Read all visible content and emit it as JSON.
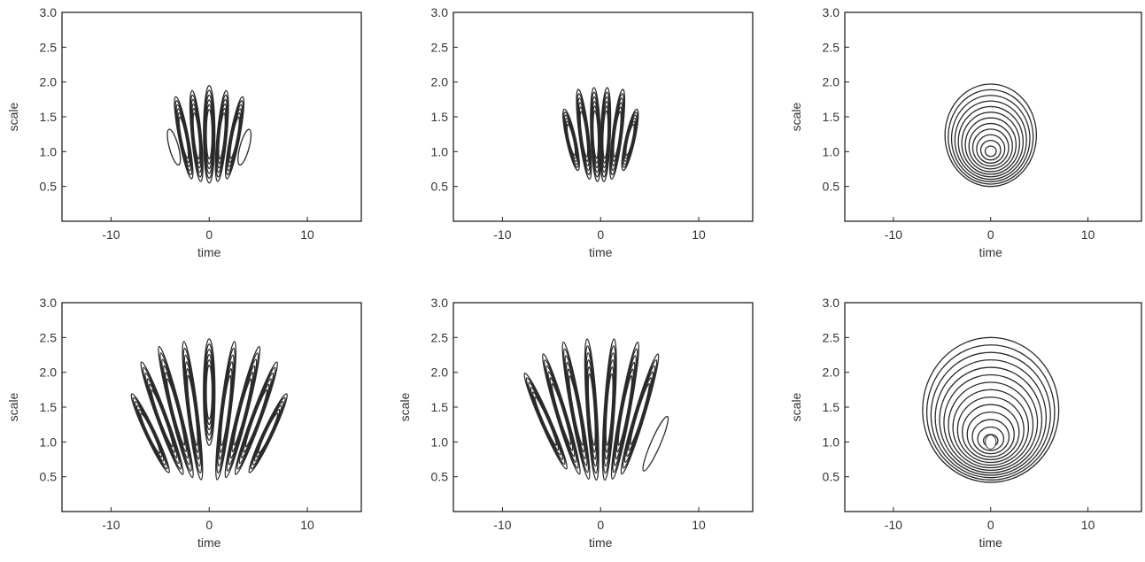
{
  "chart_data": [
    {
      "type": "contour",
      "panel": "top-left",
      "xlabel": "time",
      "ylabel": "scale",
      "xlim": [
        -15,
        15.5
      ],
      "ylim": [
        0,
        3
      ],
      "xticks": [
        "-10",
        "0",
        "10"
      ],
      "yticks": [
        "0.5",
        "1.0",
        "1.5",
        "2.0",
        "2.5",
        "3.0"
      ],
      "shape": "fan",
      "centers": [
        -3.6,
        -2.6,
        -1.3,
        0,
        1.3,
        2.6,
        3.6
      ],
      "tops": [
        1.33,
        1.8,
        1.88,
        1.95,
        1.88,
        1.8,
        1.33
      ],
      "bottoms": [
        0.8,
        0.6,
        0.57,
        0.55,
        0.57,
        0.6,
        0.8
      ],
      "dense": [
        false,
        true,
        true,
        true,
        true,
        true,
        false
      ]
    },
    {
      "type": "contour",
      "panel": "top-middle",
      "xlabel": "time",
      "ylabel": "",
      "xlim": [
        -15,
        15.5
      ],
      "ylim": [
        0,
        3
      ],
      "xticks": [
        "-10",
        "0",
        "10"
      ],
      "yticks": [
        "0.5",
        "1.0",
        "1.5",
        "2.0",
        "2.5",
        "3.0"
      ],
      "shape": "fan",
      "centers": [
        -3,
        -1.7,
        -0.5,
        0.5,
        1.7,
        3
      ],
      "tops": [
        1.62,
        1.9,
        1.92,
        1.92,
        1.9,
        1.62
      ],
      "bottoms": [
        0.72,
        0.6,
        0.57,
        0.57,
        0.6,
        0.72
      ],
      "dense": [
        true,
        true,
        true,
        true,
        true,
        true
      ]
    },
    {
      "type": "contour",
      "panel": "top-right",
      "xlabel": "time",
      "ylabel": "scale",
      "xlim": [
        -15,
        15.5
      ],
      "ylim": [
        0,
        3
      ],
      "xticks": [
        "-10",
        "0",
        "10"
      ],
      "yticks": [
        "0.5",
        "1.0",
        "1.5",
        "2.0",
        "2.5",
        "3.0"
      ],
      "shape": "blob",
      "center": [
        0,
        1.0
      ],
      "halfwidth": 4.7,
      "top": 1.97,
      "bottom": 0.5,
      "levels": 12
    },
    {
      "type": "contour",
      "panel": "bottom-left",
      "xlabel": "time",
      "ylabel": "scale",
      "xlim": [
        -15,
        15.5
      ],
      "ylim": [
        0,
        3
      ],
      "xticks": [
        "-10",
        "0",
        "10"
      ],
      "yticks": [
        "0.5",
        "1.0",
        "1.5",
        "2.0",
        "2.5",
        "3.0"
      ],
      "shape": "fan",
      "centers": [
        -6,
        -4.8,
        -3.4,
        -1.7,
        0,
        1.7,
        3.4,
        4.8,
        6
      ],
      "tops": [
        1.75,
        2.2,
        2.4,
        2.45,
        2.48,
        2.45,
        2.4,
        2.2,
        1.75
      ],
      "bottoms": [
        0.5,
        0.48,
        0.46,
        0.45,
        0.95,
        0.45,
        0.46,
        0.48,
        0.5
      ],
      "dense": [
        true,
        true,
        true,
        true,
        true,
        true,
        true,
        true,
        true
      ]
    },
    {
      "type": "contour",
      "panel": "bottom-middle",
      "xlabel": "time",
      "ylabel": "scale",
      "xlim": [
        -15,
        15.5
      ],
      "ylim": [
        0,
        3
      ],
      "xticks": [
        "-10",
        "0",
        "10"
      ],
      "yticks": [
        "0.5",
        "1.0",
        "1.5",
        "2.0",
        "2.5",
        "3.0"
      ],
      "shape": "fan",
      "centers": [
        -5.6,
        -4,
        -2.5,
        -0.9,
        0.9,
        2.5,
        4,
        5.6
      ],
      "tops": [
        2.05,
        2.3,
        2.45,
        2.48,
        2.48,
        2.45,
        2.3,
        1.4
      ],
      "bottoms": [
        0.55,
        0.5,
        0.45,
        0.45,
        0.45,
        0.45,
        0.5,
        0.55
      ],
      "dense": [
        true,
        true,
        true,
        true,
        true,
        true,
        true,
        false
      ]
    },
    {
      "type": "contour",
      "panel": "bottom-right",
      "xlabel": "time",
      "ylabel": "scale",
      "xlim": [
        -15,
        15.5
      ],
      "ylim": [
        0,
        3
      ],
      "xticks": [
        "-10",
        "0",
        "10"
      ],
      "yticks": [
        "0.5",
        "1.0",
        "1.5",
        "2.0",
        "2.5",
        "3.0"
      ],
      "shape": "blob",
      "center": [
        0,
        1.0
      ],
      "halfwidth": 7,
      "top": 2.5,
      "bottom": 0.42,
      "levels": 14
    }
  ]
}
